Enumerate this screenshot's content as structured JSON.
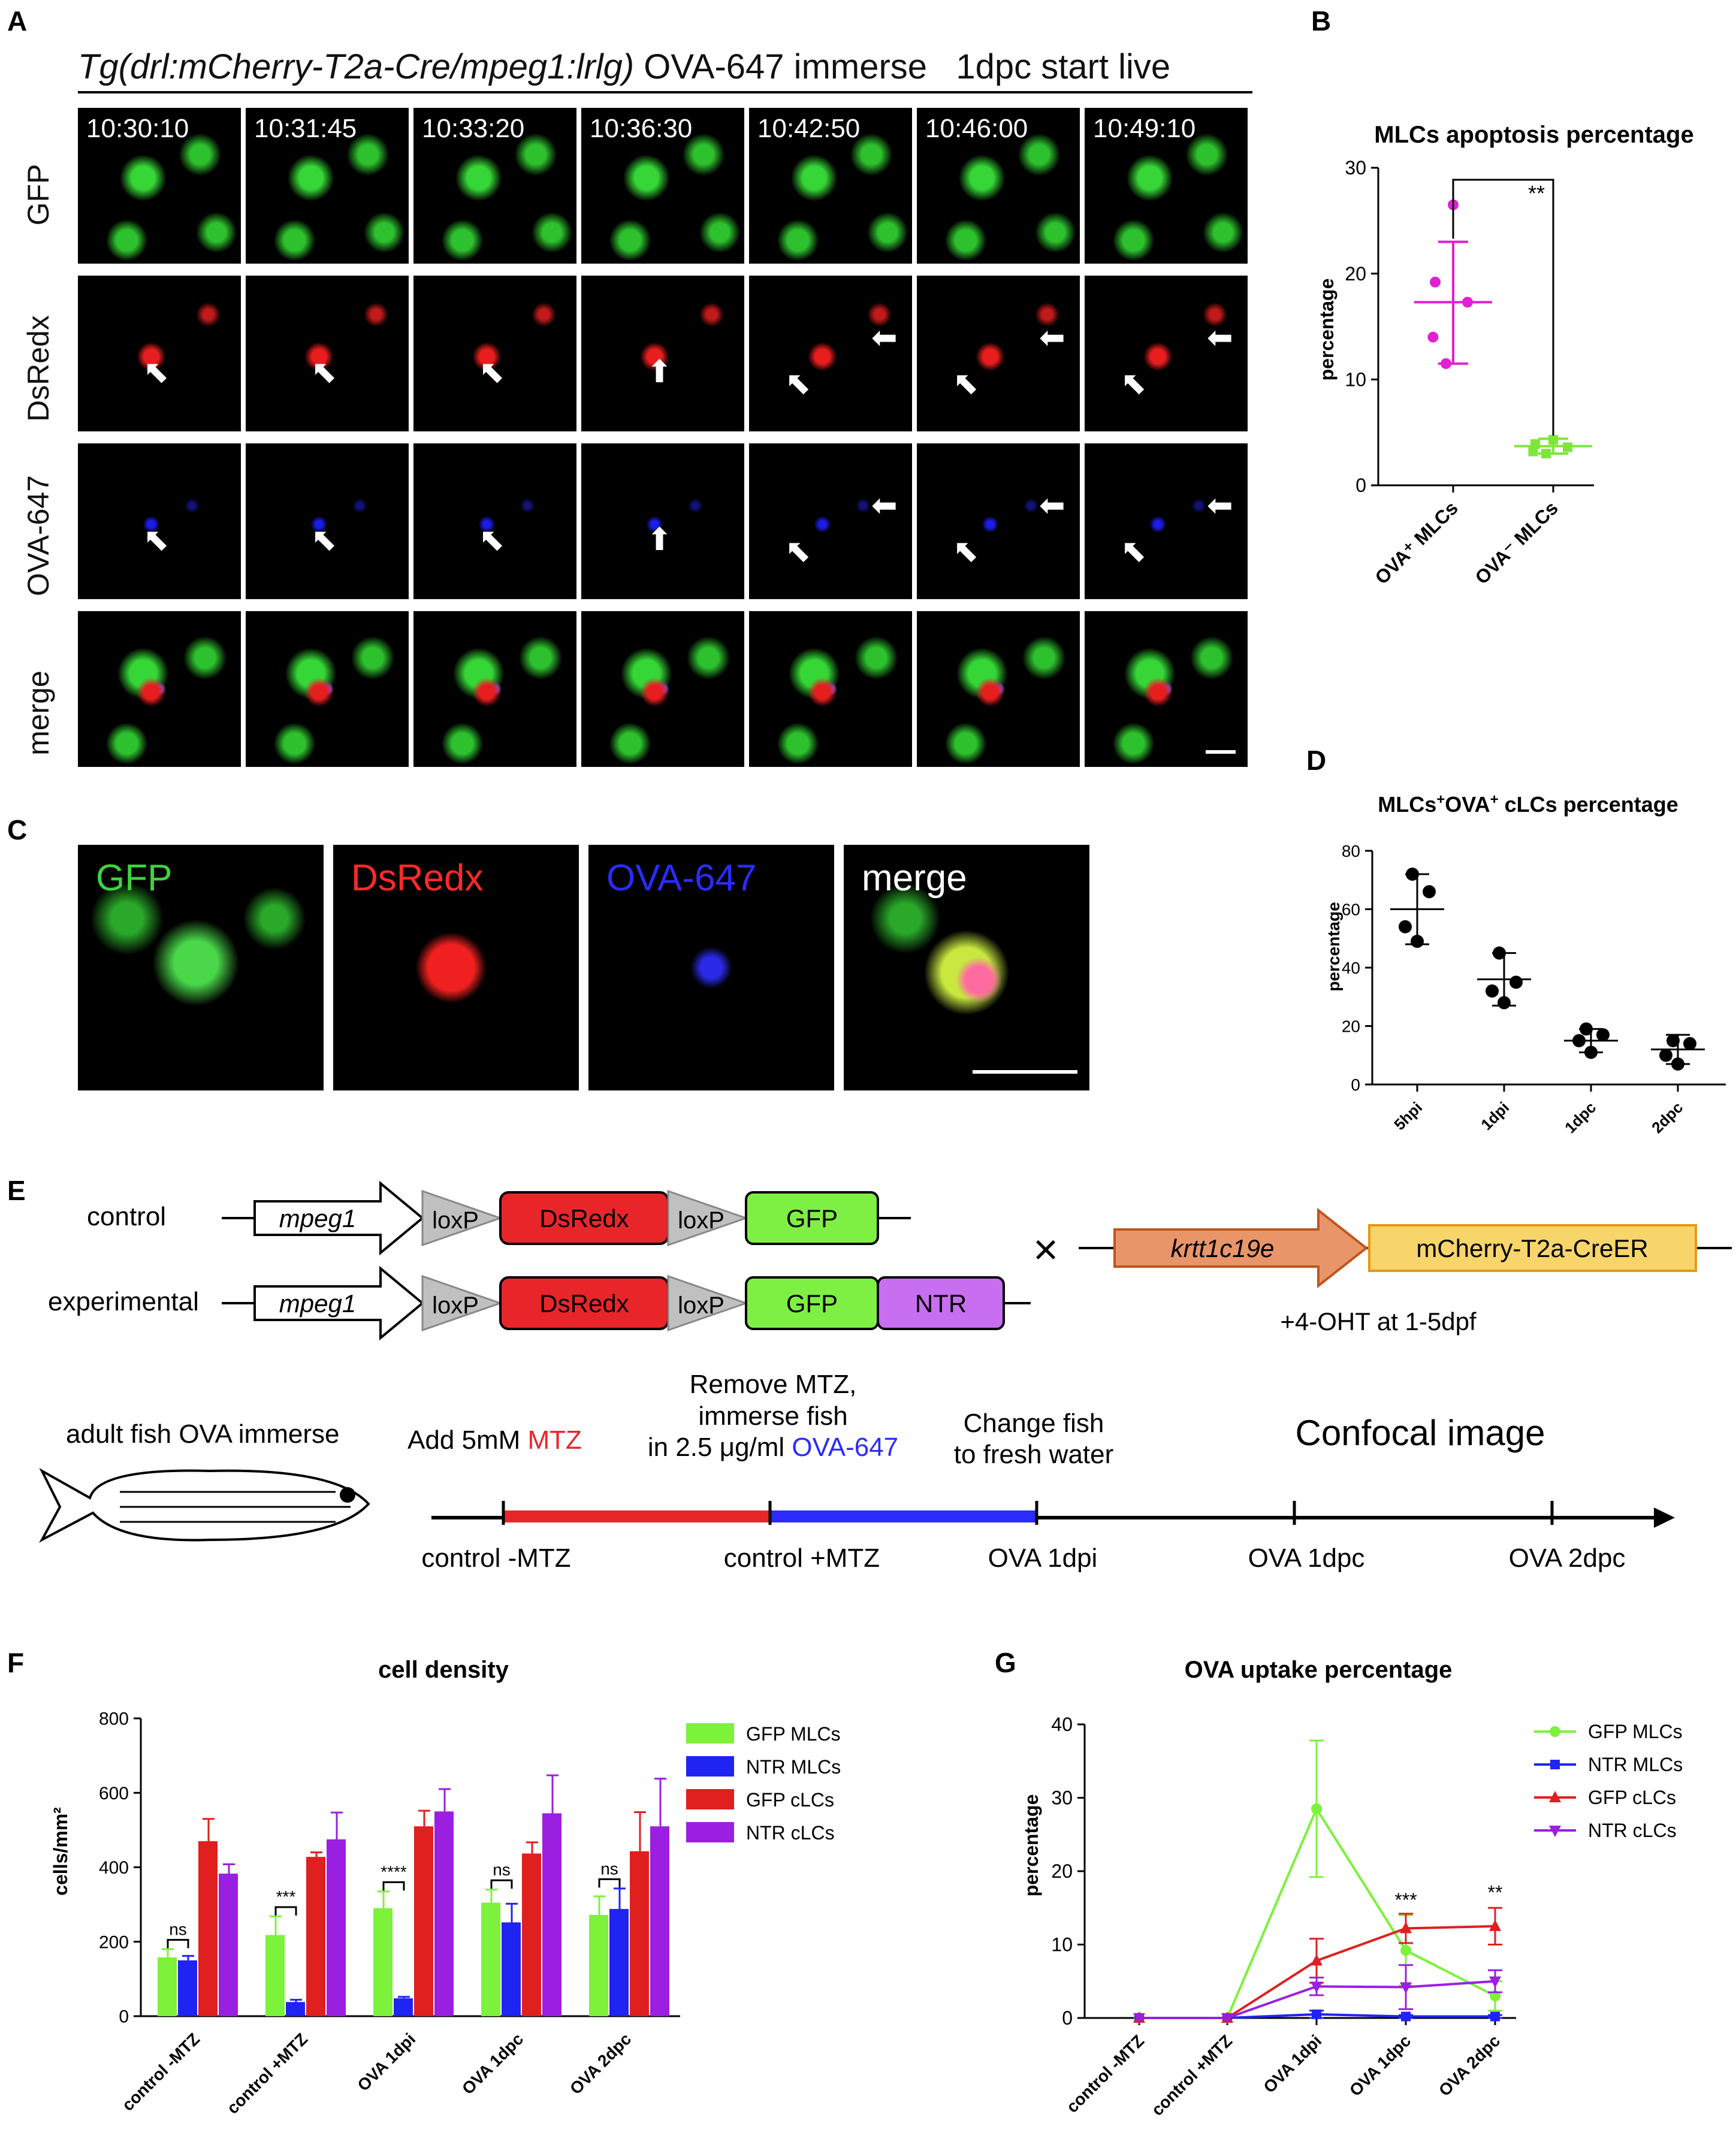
{
  "panelA": {
    "letter": "A",
    "title_italic": "Tg(drl:mCherry-T2a-Cre/mpeg1:lrlg)",
    "title_rest": "OVA-647 immerse   1dpc start live",
    "timestamps": [
      "10:30:10",
      "10:31:45",
      "10:33:20",
      "10:36:30",
      "10:42:50",
      "10:46:00",
      "10:49:10"
    ],
    "rows": [
      "GFP",
      "DsRedx",
      "OVA-647",
      "merge"
    ]
  },
  "panelB": {
    "letter": "B",
    "chart_data": {
      "type": "scatter",
      "title": "MLCs apoptosis percentage",
      "ylabel": "percentage",
      "ylim": [
        0,
        30
      ],
      "yticks": [
        "0",
        "10",
        "20",
        "30"
      ],
      "categories": [
        "OVA⁺ MLCs",
        "OVA⁻ MLCs"
      ],
      "series": [
        {
          "points": [
            26.5,
            19.2,
            17.3,
            14.0,
            11.5
          ],
          "mean": 17.3,
          "sd_low": 11.5,
          "sd_high": 23.0,
          "color": "#e21fd2"
        },
        {
          "points": [
            4.3,
            3.9,
            3.6,
            3.2,
            3.0
          ],
          "mean": 3.7,
          "sd_low": 3.0,
          "sd_high": 4.4,
          "color": "#7ee63a"
        }
      ],
      "significance": "**"
    }
  },
  "panelC": {
    "letter": "C",
    "labels": [
      "GFP",
      "DsRedx",
      "OVA-647",
      "merge"
    ],
    "colors": [
      "#3fd33f",
      "#ff2a2a",
      "#2b2bff",
      "#ffffff"
    ]
  },
  "panelD": {
    "letter": "D",
    "chart_data": {
      "type": "scatter",
      "title_parts": [
        "MLCs",
        "+",
        "OVA",
        "+",
        " cLCs percentage"
      ],
      "ylabel": "percentage",
      "ylim": [
        0,
        80
      ],
      "yticks": [
        "0",
        "20",
        "40",
        "60",
        "80"
      ],
      "categories": [
        "5hpi",
        "1dpi",
        "1dpc",
        "2dpc"
      ],
      "series": [
        {
          "points": [
            72,
            66,
            54,
            49
          ],
          "mean": 60,
          "sd_low": 48,
          "sd_high": 72
        },
        {
          "points": [
            45,
            35,
            32,
            28
          ],
          "mean": 36,
          "sd_low": 27,
          "sd_high": 45
        },
        {
          "points": [
            19,
            17,
            15,
            11
          ],
          "mean": 15,
          "sd_low": 11,
          "sd_high": 19
        },
        {
          "points": [
            15,
            14,
            10,
            7
          ],
          "mean": 12,
          "sd_low": 7,
          "sd_high": 17
        }
      ]
    }
  },
  "panelE": {
    "letter": "E",
    "control_label": "control",
    "experimental_label": "experimental",
    "mpeg1": "mpeg1",
    "loxp": "loxP",
    "dsredx": "DsRedx",
    "gfp": "GFP",
    "ntr": "NTR",
    "cross": "×",
    "krtt": "krtt1c19e",
    "creer": "mCherry-T2a-CreER",
    "oht": "+4-OHT at 1-5dpf",
    "fish_label": "adult fish OVA immerse",
    "step1_prefix": "Add 5mM ",
    "step1_drug": "MTZ",
    "step2_line1": "Remove MTZ,",
    "step2_line2": "immerse fish",
    "step2_line3_prefix": "in 2.5 μg/ml ",
    "step2_line3_drug": "OVA-647",
    "step3_line1": "Change fish",
    "step3_line2": "to fresh water",
    "step4": "Confocal image",
    "timeline": [
      "control -MTZ",
      "control +MTZ",
      "OVA 1dpi",
      "OVA 1dpc",
      "OVA 2dpc"
    ]
  },
  "panelF": {
    "letter": "F",
    "chart_data": {
      "type": "bar",
      "title": "cell density",
      "ylabel": "cells/mm²",
      "ylim": [
        0,
        800
      ],
      "yticks": [
        "0",
        "200",
        "400",
        "600",
        "800"
      ],
      "categories": [
        "control -MTZ",
        "control +MTZ",
        "OVA 1dpi",
        "OVA 1dpc",
        "OVA 2dpc"
      ],
      "series": [
        {
          "name": "GFP MLCs",
          "color": "#7cf23a",
          "values": [
            158,
            218,
            290,
            305,
            272
          ],
          "err": [
            22,
            50,
            45,
            35,
            50
          ]
        },
        {
          "name": "NTR MLCs",
          "color": "#1f24f2",
          "values": [
            150,
            38,
            48,
            252,
            288
          ],
          "err": [
            12,
            6,
            4,
            50,
            55
          ]
        },
        {
          "name": "GFP cLCs",
          "color": "#e01f1f",
          "values": [
            470,
            428,
            510,
            437,
            443
          ],
          "err": [
            60,
            12,
            42,
            30,
            105
          ]
        },
        {
          "name": "NTR cLCs",
          "color": "#9a1fe0",
          "values": [
            383,
            475,
            550,
            545,
            510
          ],
          "err": [
            25,
            72,
            60,
            102,
            128
          ]
        }
      ],
      "significance": [
        "ns",
        "***",
        "****",
        "ns",
        "ns"
      ]
    }
  },
  "panelG": {
    "letter": "G",
    "chart_data": {
      "type": "line",
      "title": "OVA uptake percentage",
      "ylabel": "percentage",
      "ylim": [
        0,
        40
      ],
      "yticks": [
        "0",
        "10",
        "20",
        "30",
        "40"
      ],
      "categories": [
        "control -MTZ",
        "control +MTZ",
        "OVA 1dpi",
        "OVA 1dpc",
        "OVA 2dpc"
      ],
      "series": [
        {
          "name": "GFP MLCs",
          "color": "#7cf23a",
          "marker": "circle",
          "values": [
            0,
            0,
            28.5,
            9.2,
            3.0
          ],
          "err": [
            0,
            0,
            9.3,
            4.8,
            2.0
          ]
        },
        {
          "name": "NTR MLCs",
          "color": "#1f24f2",
          "marker": "square",
          "values": [
            0,
            0,
            0.5,
            0.2,
            0.2
          ],
          "err": [
            0,
            0,
            0.5,
            0.2,
            0.2
          ]
        },
        {
          "name": "GFP cLCs",
          "color": "#e01f1f",
          "marker": "triangle-up",
          "values": [
            0,
            0,
            7.8,
            12.2,
            12.5
          ],
          "err": [
            0,
            0,
            3.0,
            2.0,
            2.5
          ]
        },
        {
          "name": "NTR cLCs",
          "color": "#9a1fe0",
          "marker": "triangle-down",
          "values": [
            0,
            0,
            4.3,
            4.2,
            5.0
          ],
          "err": [
            0,
            0,
            1.2,
            3.0,
            1.5
          ]
        }
      ],
      "significance": [
        "",
        "",
        "",
        "***",
        "**"
      ]
    }
  }
}
